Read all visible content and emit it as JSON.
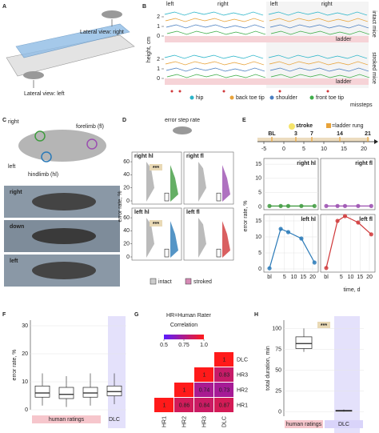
{
  "panels": {
    "A": {
      "label": "A",
      "view_right": "Lateral view: right",
      "view_left": "Lateral view: left"
    },
    "B": {
      "label": "B",
      "y_label": "height, cm",
      "yticks": [
        0,
        1,
        2
      ],
      "columns": [
        "left",
        "right",
        "left",
        "right"
      ],
      "ladder": "ladder",
      "legend": [
        "hip",
        "back toe tip",
        "shoulder",
        "front toe tip"
      ],
      "legend_colors": [
        "#2bb5c9",
        "#e8a33a",
        "#4a7fc1",
        "#3fae4a"
      ],
      "missteps": "missteps",
      "groups": [
        "intact mice",
        "stroked mice"
      ]
    },
    "C": {
      "label": "C",
      "right": "right",
      "left": "left",
      "forelimb": "forelimb (fl)",
      "hindlimb": "hindlimb (hl)",
      "views": [
        "right",
        "down",
        "left"
      ]
    },
    "D": {
      "label": "D",
      "title": "error step rate",
      "y_label": "error rate, %",
      "yticks": [
        0,
        20,
        40,
        60
      ],
      "subplots": [
        "right hl",
        "right fl",
        "left hl",
        "left fl"
      ],
      "colors": [
        "#3f9b3f",
        "#9b4fb0",
        "#2a7ab8",
        "#d0383a"
      ],
      "significance": "***",
      "legend": [
        "intact",
        "stroked"
      ]
    },
    "E": {
      "label": "E",
      "stroke": "stroke",
      "rung_legend": "=ladder rung",
      "timeline_points": [
        {
          "value": -3,
          "label": "BL"
        },
        3,
        7,
        14,
        21
      ],
      "timeline_ticks": [
        -5,
        0,
        5,
        10,
        15,
        20
      ],
      "y_label": "error rate, %",
      "time_label": "time, d"
    },
    "F": {
      "label": "F"
    },
    "G": {
      "label": "G",
      "note": "HR=Human Rater"
    },
    "H": {
      "label": "H"
    }
  },
  "chart_data": [
    {
      "type": "line",
      "title": "right hl",
      "x": [
        -3,
        3,
        7,
        14,
        21
      ],
      "series": [
        {
          "color": "#3f9b3f",
          "values": [
            0.3,
            0.3,
            0.3,
            0.3,
            0.3
          ]
        }
      ],
      "xlim": [
        -6,
        23
      ],
      "ylim": [
        -1,
        17
      ],
      "yticks": [
        0,
        5,
        10,
        15
      ]
    },
    {
      "type": "line",
      "title": "right fl",
      "x": [
        -3,
        3,
        7,
        14,
        21
      ],
      "series": [
        {
          "color": "#9b4fb0",
          "values": [
            0.3,
            0.3,
            0.3,
            0.3,
            0.3
          ]
        }
      ],
      "xlim": [
        -6,
        23
      ],
      "ylim": [
        -1,
        17
      ]
    },
    {
      "type": "line",
      "title": "left hl",
      "x": [
        -3,
        3,
        7,
        14,
        21
      ],
      "series": [
        {
          "color": "#2a7ab8",
          "values": [
            0.2,
            12.5,
            11.5,
            9.5,
            2
          ]
        }
      ],
      "xlim": [
        -6,
        23
      ],
      "ylim": [
        -1,
        17
      ],
      "yticks": [
        0,
        5,
        10,
        15
      ],
      "xticks": [
        {
          "value": -3,
          "label": "bl"
        },
        5,
        10,
        15,
        20
      ]
    },
    {
      "type": "line",
      "title": "left fl",
      "x": [
        -3,
        3,
        7,
        14,
        21
      ],
      "series": [
        {
          "color": "#d0383a",
          "values": [
            0.3,
            15,
            16.5,
            14.5,
            10.8
          ]
        }
      ],
      "xlim": [
        -6,
        23
      ],
      "ylim": [
        -1,
        17
      ],
      "xticks": [
        {
          "value": -3,
          "label": "bl"
        },
        5,
        10,
        15,
        20
      ]
    },
    {
      "type": "box",
      "y_label": "error rate, %",
      "ylim": [
        0,
        32
      ],
      "yticks": [
        0,
        10,
        20,
        30
      ],
      "groups": [
        "human ratings",
        "DLC"
      ],
      "boxes": [
        {
          "whislo": 1.5,
          "q1": 4.5,
          "median": 6,
          "q3": 8.5,
          "whishi": 13
        },
        {
          "whislo": 1,
          "q1": 4,
          "median": 5.5,
          "q3": 8,
          "whishi": 12
        },
        {
          "whislo": 1.5,
          "q1": 4.5,
          "median": 6,
          "q3": 8,
          "whishi": 13
        },
        {
          "whislo": 2,
          "q1": 5,
          "median": 6.5,
          "q3": 8.5,
          "whishi": 13
        }
      ]
    },
    {
      "type": "heatmap",
      "title": "Correlation",
      "labels": [
        "HR1",
        "HR2",
        "HR3",
        "DLC"
      ],
      "values": [
        [
          1,
          0.86,
          0.84,
          0.87
        ],
        [
          null,
          1,
          0.74,
          0.73
        ],
        [
          null,
          null,
          1,
          0.83
        ],
        [
          null,
          null,
          null,
          1
        ]
      ],
      "colormap": [
        "#5a1cff",
        "#ff1a1a"
      ],
      "clim": [
        0.5,
        1
      ],
      "cticks": [
        0.5,
        0.75,
        {
          "value": 1,
          "label": "1.0"
        }
      ]
    },
    {
      "type": "box",
      "y_label": "total duration, min",
      "ylim": [
        -5,
        110
      ],
      "yticks": [
        0,
        25,
        50,
        75,
        100
      ],
      "categories": [
        "human ratings",
        "DLC"
      ],
      "significance": "***",
      "boxes": [
        {
          "whislo": 72,
          "q1": 76,
          "median": 82,
          "q3": 90,
          "whishi": 100
        },
        {
          "whislo": 0.5,
          "q1": 1,
          "median": 1.5,
          "q3": 2,
          "whishi": 3
        }
      ]
    }
  ]
}
